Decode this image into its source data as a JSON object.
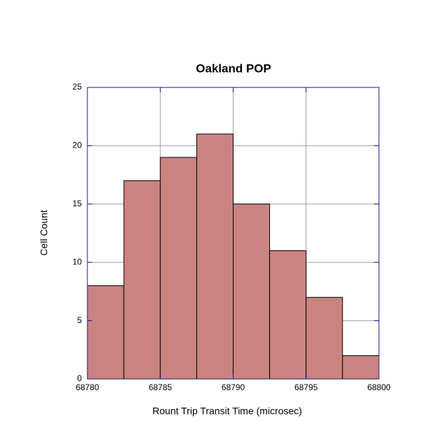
{
  "chart_data": {
    "type": "histogram",
    "title": "Oakland  POP",
    "xlabel": "Rount Trip Transit Time (microsec)",
    "ylabel": "Cell Count",
    "bins": [
      68780,
      68782.5,
      68785,
      68787.5,
      68790,
      68792.5,
      68795,
      68797.5,
      68800
    ],
    "values": [
      8,
      17,
      19,
      21,
      15,
      11,
      7,
      2
    ],
    "color": "#c98480",
    "xlim": [
      68780,
      68800
    ],
    "xticks": [
      68780,
      68785,
      68790,
      68795,
      68800
    ],
    "ylim": [
      0,
      25
    ],
    "yticks": [
      0,
      5,
      10,
      15,
      20,
      25
    ],
    "grid": true
  }
}
